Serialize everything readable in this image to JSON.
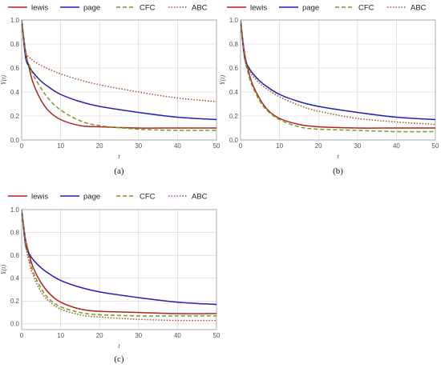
{
  "legend": [
    {
      "name": "lewis",
      "color": "#b22222",
      "dash": ""
    },
    {
      "name": "page",
      "color": "#1f1fb4",
      "dash": ""
    },
    {
      "name": "CFC",
      "color": "#7a9a1f",
      "dash": "5,3"
    },
    {
      "name": "ABC",
      "color": "#a0522d",
      "dash": "1.5,2"
    }
  ],
  "chart_data": [
    {
      "type": "line",
      "panel_label": "(a)",
      "xlabel": "t",
      "ylabel": "Y(t)",
      "xlim": [
        0,
        50
      ],
      "ylim": [
        0,
        1
      ],
      "xticks": [
        0,
        10,
        20,
        30,
        40,
        50
      ],
      "yticks": [
        0.0,
        0.2,
        0.4,
        0.6,
        0.8,
        1.0
      ],
      "x": [
        0,
        1,
        2,
        3,
        5,
        7,
        10,
        15,
        20,
        30,
        40,
        50
      ],
      "series": [
        {
          "name": "lewis",
          "values": [
            1.0,
            0.74,
            0.59,
            0.47,
            0.33,
            0.24,
            0.17,
            0.12,
            0.11,
            0.1,
            0.1,
            0.1
          ]
        },
        {
          "name": "page",
          "values": [
            1.0,
            0.69,
            0.61,
            0.56,
            0.49,
            0.44,
            0.38,
            0.32,
            0.28,
            0.23,
            0.19,
            0.17
          ]
        },
        {
          "name": "CFC",
          "values": [
            1.0,
            0.72,
            0.62,
            0.54,
            0.43,
            0.34,
            0.25,
            0.16,
            0.12,
            0.09,
            0.08,
            0.08
          ]
        },
        {
          "name": "ABC",
          "values": [
            1.0,
            0.74,
            0.69,
            0.66,
            0.62,
            0.59,
            0.55,
            0.5,
            0.46,
            0.4,
            0.35,
            0.32
          ]
        }
      ]
    },
    {
      "type": "line",
      "panel_label": "(b)",
      "xlabel": "t",
      "ylabel": "Y(t)",
      "xlim": [
        0,
        50
      ],
      "ylim": [
        0,
        1
      ],
      "xticks": [
        0,
        10,
        20,
        30,
        40,
        50
      ],
      "yticks": [
        0.0,
        0.2,
        0.4,
        0.6,
        0.8,
        1.0
      ],
      "x": [
        0,
        1,
        2,
        3,
        5,
        7,
        10,
        15,
        20,
        30,
        40,
        50
      ],
      "series": [
        {
          "name": "lewis",
          "values": [
            1.0,
            0.73,
            0.58,
            0.47,
            0.34,
            0.25,
            0.18,
            0.13,
            0.11,
            0.1,
            0.1,
            0.1
          ]
        },
        {
          "name": "page",
          "values": [
            1.0,
            0.69,
            0.61,
            0.56,
            0.49,
            0.44,
            0.38,
            0.32,
            0.28,
            0.23,
            0.19,
            0.17
          ]
        },
        {
          "name": "CFC",
          "values": [
            1.0,
            0.7,
            0.55,
            0.45,
            0.32,
            0.24,
            0.17,
            0.11,
            0.09,
            0.08,
            0.07,
            0.07
          ]
        },
        {
          "name": "ABC",
          "values": [
            1.0,
            0.7,
            0.6,
            0.54,
            0.47,
            0.42,
            0.36,
            0.29,
            0.24,
            0.18,
            0.15,
            0.13
          ]
        }
      ]
    },
    {
      "type": "line",
      "panel_label": "(c)",
      "xlabel": "t",
      "ylabel": "Y(t)",
      "xlim": [
        0,
        50
      ],
      "ylim": [
        -0.05,
        1
      ],
      "xticks": [
        0,
        10,
        20,
        30,
        40,
        50
      ],
      "yticks": [
        0.0,
        0.2,
        0.4,
        0.6,
        0.8,
        1.0
      ],
      "x": [
        0,
        1,
        2,
        3,
        5,
        7,
        10,
        15,
        20,
        30,
        40,
        50
      ],
      "series": [
        {
          "name": "lewis",
          "values": [
            1.0,
            0.74,
            0.6,
            0.49,
            0.36,
            0.27,
            0.19,
            0.13,
            0.11,
            0.1,
            0.09,
            0.09
          ]
        },
        {
          "name": "page",
          "values": [
            1.0,
            0.69,
            0.61,
            0.56,
            0.49,
            0.44,
            0.38,
            0.32,
            0.28,
            0.23,
            0.19,
            0.17
          ]
        },
        {
          "name": "CFC",
          "values": [
            1.0,
            0.72,
            0.56,
            0.45,
            0.31,
            0.22,
            0.15,
            0.1,
            0.08,
            0.07,
            0.07,
            0.07
          ]
        },
        {
          "name": "ABC",
          "values": [
            1.0,
            0.7,
            0.53,
            0.42,
            0.28,
            0.2,
            0.13,
            0.08,
            0.06,
            0.04,
            0.03,
            0.03
          ]
        }
      ]
    }
  ]
}
